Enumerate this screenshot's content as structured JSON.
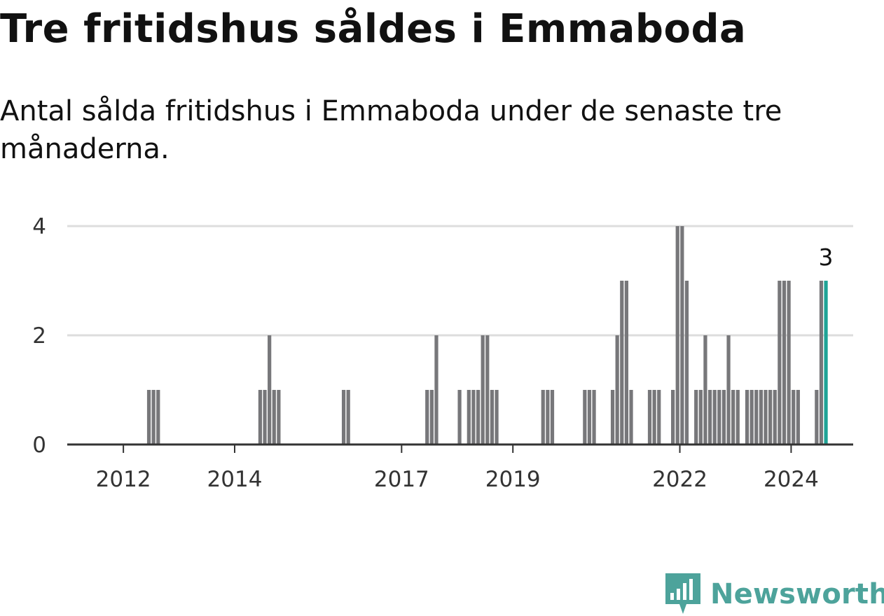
{
  "title": "Tre fritidshus såldes i Emmaboda",
  "subtitle": "Antal sålda fritidshus i Emmaboda under de senaste tre månaderna.",
  "brand": {
    "name": "Newsworthy",
    "icon": "newsworthy-logo-icon"
  },
  "colors": {
    "bar": "#77777a",
    "highlight": "#1fa396",
    "grid": "#dddddd",
    "axis": "#333333",
    "brand": "#4da39b"
  },
  "chart_data": {
    "type": "bar",
    "title": "Tre fritidshus såldes i Emmaboda",
    "subtitle": "Antal sålda fritidshus i Emmaboda under de senaste tre månaderna.",
    "xlabel": "",
    "ylabel": "",
    "ylim": [
      0,
      4
    ],
    "y_ticks": [
      0,
      2,
      4
    ],
    "x_ticks": [
      "2012",
      "2014",
      "2017",
      "2019",
      "2022",
      "2024"
    ],
    "x_tick_values": [
      "2012-01",
      "2014-01",
      "2017-01",
      "2019-01",
      "2022-01",
      "2024-01"
    ],
    "grid": true,
    "last_value_label": "3",
    "series": [
      {
        "points": [
          [
            "2012-06",
            1
          ],
          [
            "2012-07",
            1
          ],
          [
            "2012-08",
            1
          ],
          [
            "2014-06",
            1
          ],
          [
            "2014-07",
            1
          ],
          [
            "2014-08",
            2
          ],
          [
            "2014-09",
            1
          ],
          [
            "2014-10",
            1
          ],
          [
            "2015-12",
            1
          ],
          [
            "2016-01",
            1
          ],
          [
            "2017-06",
            1
          ],
          [
            "2017-07",
            1
          ],
          [
            "2017-08",
            2
          ],
          [
            "2018-01",
            1
          ],
          [
            "2018-03",
            1
          ],
          [
            "2018-04",
            1
          ],
          [
            "2018-05",
            1
          ],
          [
            "2018-06",
            2
          ],
          [
            "2018-07",
            2
          ],
          [
            "2018-08",
            1
          ],
          [
            "2018-09",
            1
          ],
          [
            "2019-07",
            1
          ],
          [
            "2019-08",
            1
          ],
          [
            "2019-09",
            1
          ],
          [
            "2020-04",
            1
          ],
          [
            "2020-05",
            1
          ],
          [
            "2020-06",
            1
          ],
          [
            "2020-10",
            1
          ],
          [
            "2020-11",
            2
          ],
          [
            "2020-12",
            3
          ],
          [
            "2021-01",
            3
          ],
          [
            "2021-02",
            1
          ],
          [
            "2021-06",
            1
          ],
          [
            "2021-07",
            1
          ],
          [
            "2021-08",
            1
          ],
          [
            "2021-11",
            1
          ],
          [
            "2021-12",
            4
          ],
          [
            "2022-01",
            4
          ],
          [
            "2022-02",
            3
          ],
          [
            "2022-04",
            1
          ],
          [
            "2022-05",
            1
          ],
          [
            "2022-06",
            2
          ],
          [
            "2022-07",
            1
          ],
          [
            "2022-08",
            1
          ],
          [
            "2022-09",
            1
          ],
          [
            "2022-10",
            1
          ],
          [
            "2022-11",
            2
          ],
          [
            "2022-12",
            1
          ],
          [
            "2023-01",
            1
          ],
          [
            "2023-03",
            1
          ],
          [
            "2023-04",
            1
          ],
          [
            "2023-05",
            1
          ],
          [
            "2023-06",
            1
          ],
          [
            "2023-07",
            1
          ],
          [
            "2023-08",
            1
          ],
          [
            "2023-09",
            1
          ],
          [
            "2023-10",
            3
          ],
          [
            "2023-11",
            3
          ],
          [
            "2023-12",
            3
          ],
          [
            "2024-01",
            1
          ],
          [
            "2024-02",
            1
          ],
          [
            "2024-06",
            1
          ],
          [
            "2024-07",
            3
          ],
          [
            "2024-08",
            3
          ]
        ]
      }
    ]
  }
}
